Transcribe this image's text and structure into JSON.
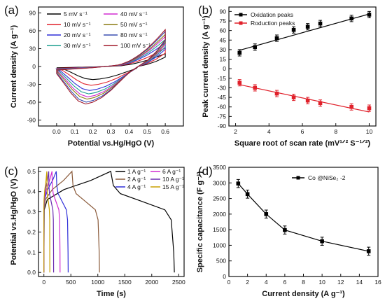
{
  "chart_data": [
    {
      "panel": "(a)",
      "type": "line",
      "xlabel": "Potential vs.Hg/HgO (V)",
      "ylabel": "Current density (A g⁻¹)",
      "xlim": [
        -0.1,
        0.7
      ],
      "ylim": [
        -100,
        100
      ],
      "xticks": [
        "0.0",
        "0.1",
        "0.2",
        "0.3",
        "0.4",
        "0.5",
        "0.6"
      ],
      "yticks": [
        "-90",
        "-60",
        "-30",
        "0",
        "30",
        "60",
        "90"
      ],
      "legend_placement": "top-left",
      "series": [
        {
          "name": "5 mV s⁻¹",
          "color": "#000000",
          "scale": 0.35
        },
        {
          "name": "10 mV s⁻¹",
          "color": "#e0202a",
          "scale": 0.5
        },
        {
          "name": "20 mV s⁻¹",
          "color": "#2f2fd8",
          "scale": 0.64
        },
        {
          "name": "30 mV s⁻¹",
          "color": "#1a9e8e",
          "scale": 0.73
        },
        {
          "name": "40 mV s⁻¹",
          "color": "#d12bd1",
          "scale": 0.81
        },
        {
          "name": "50 mV s⁻¹",
          "color": "#8a7a10",
          "scale": 0.87
        },
        {
          "name": "80 mV s⁻¹",
          "color": "#3a4fb0",
          "scale": 0.95
        },
        {
          "name": "100 mV s⁻¹",
          "color": "#a0182a",
          "scale": 1.0
        }
      ],
      "curve_shape": {
        "anodic": [
          [
            0.0,
            -6
          ],
          [
            0.1,
            -4
          ],
          [
            0.2,
            -2
          ],
          [
            0.3,
            1
          ],
          [
            0.35,
            3
          ],
          [
            0.4,
            9
          ],
          [
            0.45,
            18
          ],
          [
            0.5,
            30
          ],
          [
            0.55,
            45
          ],
          [
            0.6,
            62
          ]
        ],
        "cathodic": [
          [
            0.6,
            45
          ],
          [
            0.55,
            25
          ],
          [
            0.5,
            10
          ],
          [
            0.45,
            0
          ],
          [
            0.4,
            -10
          ],
          [
            0.35,
            -25
          ],
          [
            0.3,
            -40
          ],
          [
            0.25,
            -52
          ],
          [
            0.2,
            -60
          ],
          [
            0.16,
            -63
          ],
          [
            0.12,
            -58
          ],
          [
            0.08,
            -45
          ],
          [
            0.04,
            -28
          ],
          [
            0.0,
            -12
          ]
        ]
      }
    },
    {
      "panel": "(b)",
      "type": "scatter",
      "xlabel": "Square root of scan rate (mV¹ᐟ² S⁻¹ᐟ²)",
      "ylabel": "Peak current density (A g⁻¹)",
      "xlim": [
        1.6,
        10.4
      ],
      "ylim": [
        -90,
        97
      ],
      "xticks": [
        "2",
        "4",
        "6",
        "8",
        "10"
      ],
      "yticks": [
        "-90",
        "-75",
        "-60",
        "-45",
        "-30",
        "-15",
        "0",
        "15",
        "30",
        "45",
        "60",
        "75",
        "90"
      ],
      "legend_placement": "top-left",
      "series": [
        {
          "name": "Oxidation peaks",
          "color": "#000000",
          "x": [
            2.24,
            3.16,
            4.47,
            5.48,
            6.32,
            7.07,
            8.94,
            10.0
          ],
          "y": [
            25,
            34,
            48,
            61,
            66,
            71,
            79,
            85
          ],
          "fit": [
            [
              2.24,
              29
            ],
            [
              10.0,
              86
            ]
          ]
        },
        {
          "name": "Roduction peaks",
          "color": "#e0202a",
          "x": [
            2.24,
            3.16,
            4.47,
            5.48,
            6.32,
            7.07,
            8.94,
            10.0
          ],
          "y": [
            -22,
            -30,
            -39,
            -45,
            -50,
            -54,
            -60,
            -62
          ],
          "fit": [
            [
              2.24,
              -25
            ],
            [
              10.0,
              -68
            ]
          ]
        }
      ],
      "error_bar": 5
    },
    {
      "panel": "(c)",
      "type": "line",
      "xlabel": "Time (s)",
      "ylabel": "Potential vs.Hg/HgO (V)",
      "xlim": [
        -100,
        2600
      ],
      "ylim": [
        -0.02,
        0.52
      ],
      "xticks": [
        "0",
        "500",
        "1000",
        "1500",
        "2000",
        "2500"
      ],
      "yticks": [
        "0.0",
        "0.1",
        "0.2",
        "0.3",
        "0.4",
        "0.5"
      ],
      "legend_placement": "top-right",
      "series": [
        {
          "name": "1 A g⁻¹",
          "color": "#000000",
          "t_charge": 1240,
          "t_end": 2420
        },
        {
          "name": "2 A g⁻¹",
          "color": "#8a5a3a",
          "t_charge": 520,
          "t_end": 1030
        },
        {
          "name": "4 A g⁻¹",
          "color": "#2f2fd8",
          "t_charge": 230,
          "t_end": 450
        },
        {
          "name": "6 A g⁻¹",
          "color": "#d12bd1",
          "t_charge": 150,
          "t_end": 300
        },
        {
          "name": "10 A g⁻¹",
          "color": "#6a2bb0",
          "t_charge": 90,
          "t_end": 180
        },
        {
          "name": "15 A g⁻¹",
          "color": "#c8a000",
          "t_charge": 55,
          "t_end": 110
        }
      ]
    },
    {
      "panel": "(d)",
      "type": "line",
      "xlabel": "Current density (A g⁻¹)",
      "ylabel": "Specific capacitance (F g⁻¹)",
      "xlim": [
        0,
        16
      ],
      "ylim": [
        0,
        3500
      ],
      "xticks": [
        "0",
        "2",
        "4",
        "6",
        "8",
        "10",
        "12",
        "14",
        "16"
      ],
      "yticks": [
        "0",
        "500",
        "1000",
        "1500",
        "2000",
        "2500",
        "3000",
        "3500"
      ],
      "legend_placement": "top-right",
      "series": [
        {
          "name": "Co @NiSe₂ -2",
          "color": "#000000",
          "x": [
            1,
            2,
            4,
            6,
            10,
            15
          ],
          "y": [
            2980,
            2640,
            2000,
            1490,
            1130,
            810
          ]
        }
      ],
      "error_bar": 130
    }
  ]
}
